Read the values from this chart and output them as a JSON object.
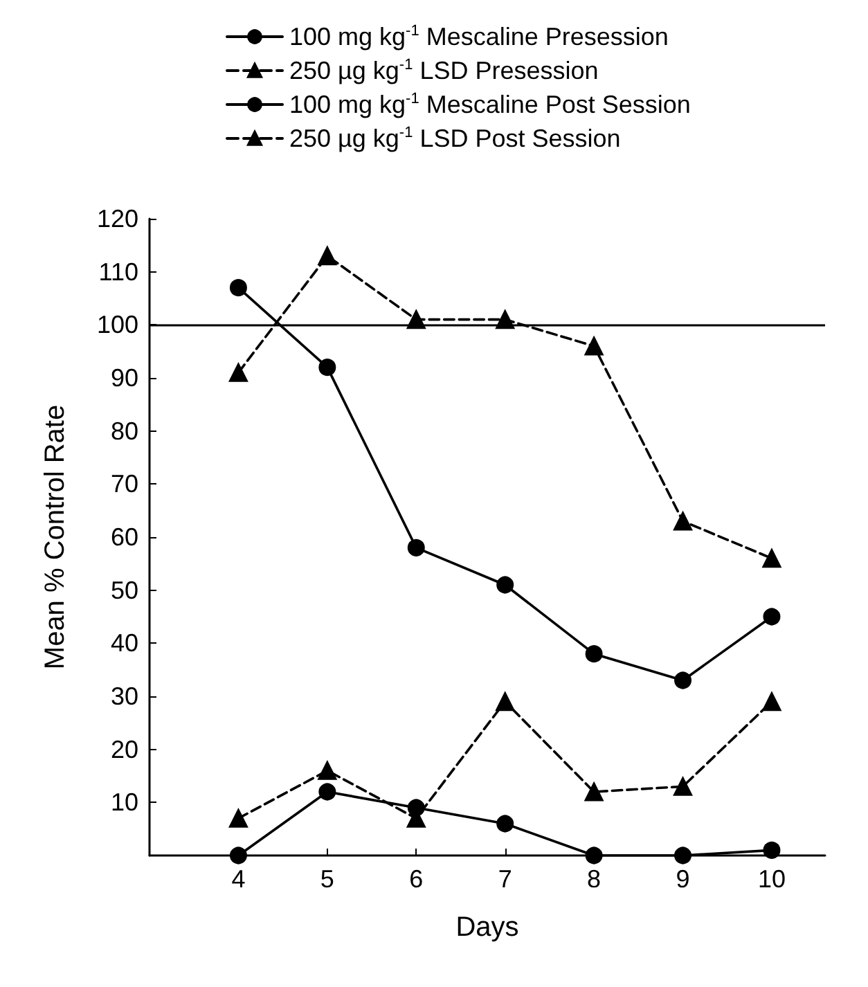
{
  "chart_data": {
    "type": "line",
    "xlabel": "Days",
    "ylabel": "Mean % Control Rate",
    "x": [
      4,
      5,
      6,
      7,
      8,
      9,
      10
    ],
    "xlim": [
      3,
      10.6
    ],
    "xticks": [
      4,
      5,
      6,
      7,
      8,
      9,
      10
    ],
    "ylim": [
      0,
      120
    ],
    "yticks": [
      10,
      20,
      30,
      40,
      50,
      60,
      70,
      80,
      90,
      100,
      110,
      120
    ],
    "legend": "top",
    "grid": false,
    "series": [
      {
        "name": "100 mg kg$^{-1}$ Mescaline Presession",
        "color": "#000000",
        "marker": "circle",
        "line_style": "solid",
        "values": [
          0,
          12,
          9,
          6,
          0,
          0,
          1
        ]
      },
      {
        "name": "250 µg kg$^{-1}$ LSD Presession",
        "color": "#000000",
        "marker": "triangle",
        "line_style": "dashed",
        "values": [
          7,
          16,
          7,
          29,
          12,
          13,
          29
        ]
      },
      {
        "name": "100 mg kg$^{-1}$ Mescaline Post Session",
        "color": "#000000",
        "marker": "circle",
        "line_style": "solid",
        "values": [
          107,
          92,
          58,
          51,
          38,
          33,
          45
        ]
      },
      {
        "name": "250 µg kg$^{-1}$ LSD Post Session",
        "color": "#000000",
        "marker": "triangle",
        "line_style": "dashed",
        "values": [
          91,
          113,
          101,
          101,
          96,
          63,
          56
        ]
      }
    ],
    "ref_lines": [
      {
        "axis": "y",
        "value": 100,
        "color": "#000000",
        "line_style": "solid"
      }
    ]
  }
}
